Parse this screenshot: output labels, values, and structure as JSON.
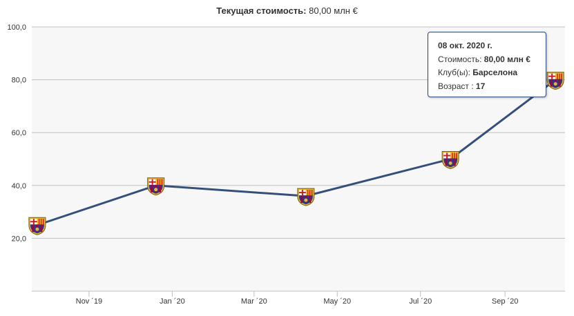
{
  "header": {
    "title_label": "Текущая стоимость:",
    "title_value": "80,00 млн €"
  },
  "tooltip": {
    "date": "08 окт. 2020 г.",
    "value_label": "Стоимость:",
    "value": "80,00 млн €",
    "club_label": "Клуб(ы):",
    "club": "Барселона",
    "age_label": "Возраст :",
    "age": "17"
  },
  "colors": {
    "line": "#34507a",
    "plot_bg": "#f7f7f7",
    "grid": "#c0c0c0",
    "tooltip_border": "#2b4a75"
  },
  "marker_icon": "fc-barcelona-crest-icon",
  "chart_data": {
    "type": "line",
    "title": "Текущая стоимость: 80,00 млн €",
    "xlabel": "",
    "ylabel": "",
    "y_ticks": [
      "20,0",
      "40,0",
      "60,0",
      "80,0",
      "100,0"
    ],
    "y_tick_values": [
      20,
      40,
      60,
      80,
      100
    ],
    "x_ticks": [
      "Nov ´19",
      "Jan ´20",
      "Mar ´20",
      "May ´20",
      "Jul ´20",
      "Sep ´20"
    ],
    "x_tick_dates": [
      "2019-11-01",
      "2020-01-01",
      "2020-03-01",
      "2020-05-01",
      "2020-07-01",
      "2020-09-01"
    ],
    "x_range": [
      "2019-09-20",
      "2020-10-15"
    ],
    "ylim": [
      0,
      100
    ],
    "grid": true,
    "series": [
      {
        "x": [
          "2019-09-24",
          "2019-12-20",
          "2020-04-08",
          "2020-07-23",
          "2020-10-08"
        ],
        "values": [
          25,
          40,
          36,
          50,
          80
        ]
      }
    ]
  }
}
